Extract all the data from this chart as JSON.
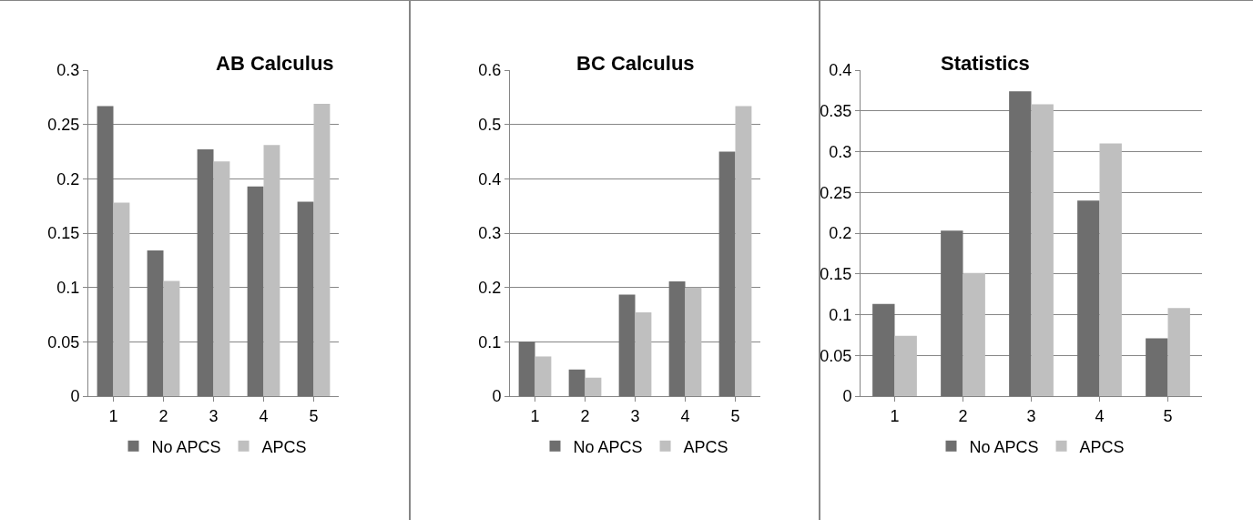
{
  "chart_data": [
    {
      "type": "bar",
      "title": "AB Calculus",
      "categories": [
        "1",
        "2",
        "3",
        "4",
        "5"
      ],
      "ylim": [
        0,
        0.3
      ],
      "yticks": [
        0,
        0.05,
        0.1,
        0.15,
        0.2,
        0.25,
        0.3
      ],
      "grid": "y",
      "legend": "bottom",
      "series": [
        {
          "name": "No APCS",
          "color": "#6e6e6e",
          "values": [
            0.267,
            0.134,
            0.227,
            0.193,
            0.179
          ]
        },
        {
          "name": "APCS",
          "color": "#bfbfbf",
          "values": [
            0.178,
            0.106,
            0.216,
            0.231,
            0.269
          ]
        }
      ]
    },
    {
      "type": "bar",
      "title": "BC Calculus",
      "categories": [
        "1",
        "2",
        "3",
        "4",
        "5"
      ],
      "ylim": [
        0,
        0.6
      ],
      "yticks": [
        0,
        0.1,
        0.2,
        0.3,
        0.4,
        0.5,
        0.6
      ],
      "grid": "y",
      "legend": "bottom",
      "series": [
        {
          "name": "No APCS",
          "color": "#6e6e6e",
          "values": [
            0.1,
            0.049,
            0.187,
            0.211,
            0.45
          ]
        },
        {
          "name": "APCS",
          "color": "#bfbfbf",
          "values": [
            0.073,
            0.034,
            0.154,
            0.2,
            0.534
          ]
        }
      ]
    },
    {
      "type": "bar",
      "title": "Statistics",
      "categories": [
        "1",
        "2",
        "3",
        "4",
        "5"
      ],
      "ylim": [
        0,
        0.4
      ],
      "yticks": [
        0,
        0.05,
        0.1,
        0.15,
        0.2,
        0.25,
        0.3,
        0.35,
        0.4
      ],
      "grid": "y",
      "legend": "bottom",
      "series": [
        {
          "name": "No APCS",
          "color": "#6e6e6e",
          "values": [
            0.113,
            0.203,
            0.374,
            0.24,
            0.071
          ]
        },
        {
          "name": "APCS",
          "color": "#bfbfbf",
          "values": [
            0.074,
            0.151,
            0.358,
            0.31,
            0.108
          ]
        }
      ]
    }
  ]
}
